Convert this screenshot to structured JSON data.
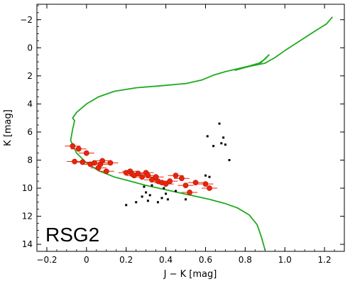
{
  "chart_data": {
    "type": "scatter",
    "title": "",
    "xlabel": "J − K [mag]",
    "ylabel": "K [mag]",
    "xlim": [
      -0.25,
      1.3
    ],
    "ylim": [
      14.5,
      -3.1
    ],
    "y_inverted": true,
    "grid": false,
    "xticks": [
      "−0.2",
      "0",
      "0.2",
      "0.4",
      "0.6",
      "0.8",
      "1.0",
      "1.2"
    ],
    "xtick_values": [
      -0.2,
      0,
      0.2,
      0.4,
      0.6,
      0.8,
      1.0,
      1.2
    ],
    "yticks": [
      "−2",
      "0",
      "2",
      "4",
      "6",
      "8",
      "10",
      "12",
      "14"
    ],
    "ytick_values": [
      -2,
      0,
      2,
      4,
      6,
      8,
      10,
      12,
      14
    ],
    "annotation": "RSG2",
    "colors": {
      "isochrone": "#1faa1f",
      "members": "#e8250c",
      "field": "#000000",
      "axes": "#000000"
    },
    "series": [
      {
        "type": "line",
        "x": [
          0.9,
          0.88,
          0.86,
          0.82,
          0.76,
          0.7,
          0.62,
          0.54,
          0.46,
          0.38,
          0.3,
          0.22,
          0.14,
          0.06,
          0.0,
          -0.05,
          -0.08,
          -0.07,
          -0.06,
          -0.07,
          -0.05,
          0.0,
          0.06,
          0.14,
          0.25,
          0.38,
          0.5,
          0.58,
          0.64,
          0.7,
          0.76,
          0.82,
          0.88,
          0.92,
          0.9,
          0.86,
          0.8,
          0.75,
          0.77,
          0.83,
          0.9,
          0.95,
          1.0,
          1.06,
          1.12,
          1.17,
          1.21,
          1.24
        ],
        "y": [
          14.4,
          13.4,
          12.6,
          11.9,
          11.4,
          11.1,
          10.8,
          10.55,
          10.3,
          10.05,
          9.8,
          9.5,
          9.2,
          8.75,
          8.2,
          7.5,
          6.6,
          5.8,
          5.2,
          5.0,
          4.6,
          4.0,
          3.5,
          3.1,
          2.85,
          2.7,
          2.55,
          2.3,
          1.95,
          1.7,
          1.5,
          1.3,
          1.05,
          0.5,
          0.8,
          1.2,
          1.4,
          1.6,
          1.5,
          1.3,
          1.1,
          0.7,
          0.2,
          -0.35,
          -0.9,
          -1.35,
          -1.7,
          -2.2
        ]
      },
      {
        "type": "scatter",
        "x": [
          -0.07,
          -0.06,
          -0.04,
          -0.02,
          0.0,
          0.02,
          0.04,
          0.06,
          0.07,
          0.08,
          0.1,
          0.12,
          0.2,
          0.22,
          0.23,
          0.24,
          0.26,
          0.28,
          0.3,
          0.31,
          0.33,
          0.35,
          0.36,
          0.38,
          0.4,
          0.42,
          0.45,
          0.48,
          0.5,
          0.52,
          0.55,
          0.6,
          0.62
        ],
        "y": [
          7.0,
          8.1,
          7.2,
          8.15,
          7.5,
          8.3,
          8.2,
          8.55,
          8.3,
          8.05,
          8.8,
          8.2,
          8.9,
          8.8,
          9.0,
          9.1,
          8.95,
          9.2,
          8.9,
          9.1,
          9.4,
          9.2,
          9.5,
          9.6,
          9.7,
          9.5,
          9.1,
          9.3,
          9.8,
          10.3,
          9.6,
          9.7,
          10.0
        ]
      },
      {
        "type": "scatter",
        "x": [
          0.2,
          0.25,
          0.28,
          0.29,
          0.3,
          0.31,
          0.32,
          0.33,
          0.36,
          0.38,
          0.39,
          0.4,
          0.41,
          0.45,
          0.5,
          0.6,
          0.61,
          0.62,
          0.64,
          0.67,
          0.68,
          0.69,
          0.7,
          0.72
        ],
        "y": [
          11.2,
          11.0,
          10.6,
          9.9,
          10.3,
          10.9,
          10.5,
          9.8,
          11.0,
          10.7,
          10.0,
          10.4,
          10.8,
          10.2,
          10.8,
          9.1,
          6.3,
          9.2,
          7.0,
          5.4,
          6.8,
          6.4,
          6.9,
          8.0
        ]
      }
    ]
  }
}
